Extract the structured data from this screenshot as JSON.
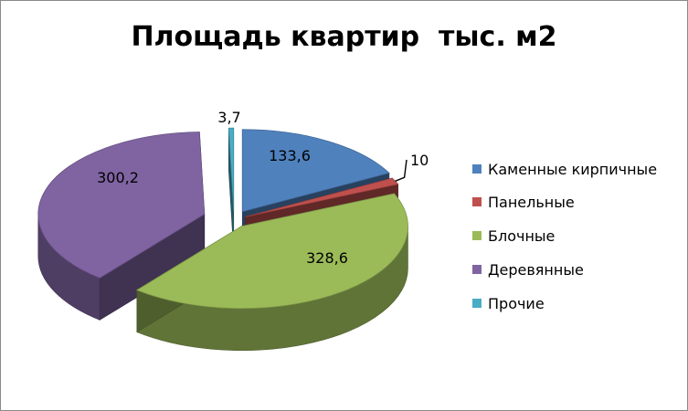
{
  "chart_data": {
    "type": "pie",
    "title": "Площадь квартир  тыс. м2",
    "legend_position": "right",
    "three_d": true,
    "exploded": true,
    "slices": [
      {
        "name": "Каменные кирпичные",
        "value": 133.6,
        "label": "133,6",
        "color": "#4f81bd"
      },
      {
        "name": "Панельные",
        "value": 10,
        "label": "10",
        "color": "#c0504d"
      },
      {
        "name": "Блочные",
        "value": 328.6,
        "label": "328,6",
        "color": "#9bbb59"
      },
      {
        "name": "Деревянные",
        "value": 300.2,
        "label": "300,2",
        "color": "#8064a2"
      },
      {
        "name": "Прочие",
        "value": 3.7,
        "label": "3,7",
        "color": "#4bacc6"
      }
    ]
  }
}
